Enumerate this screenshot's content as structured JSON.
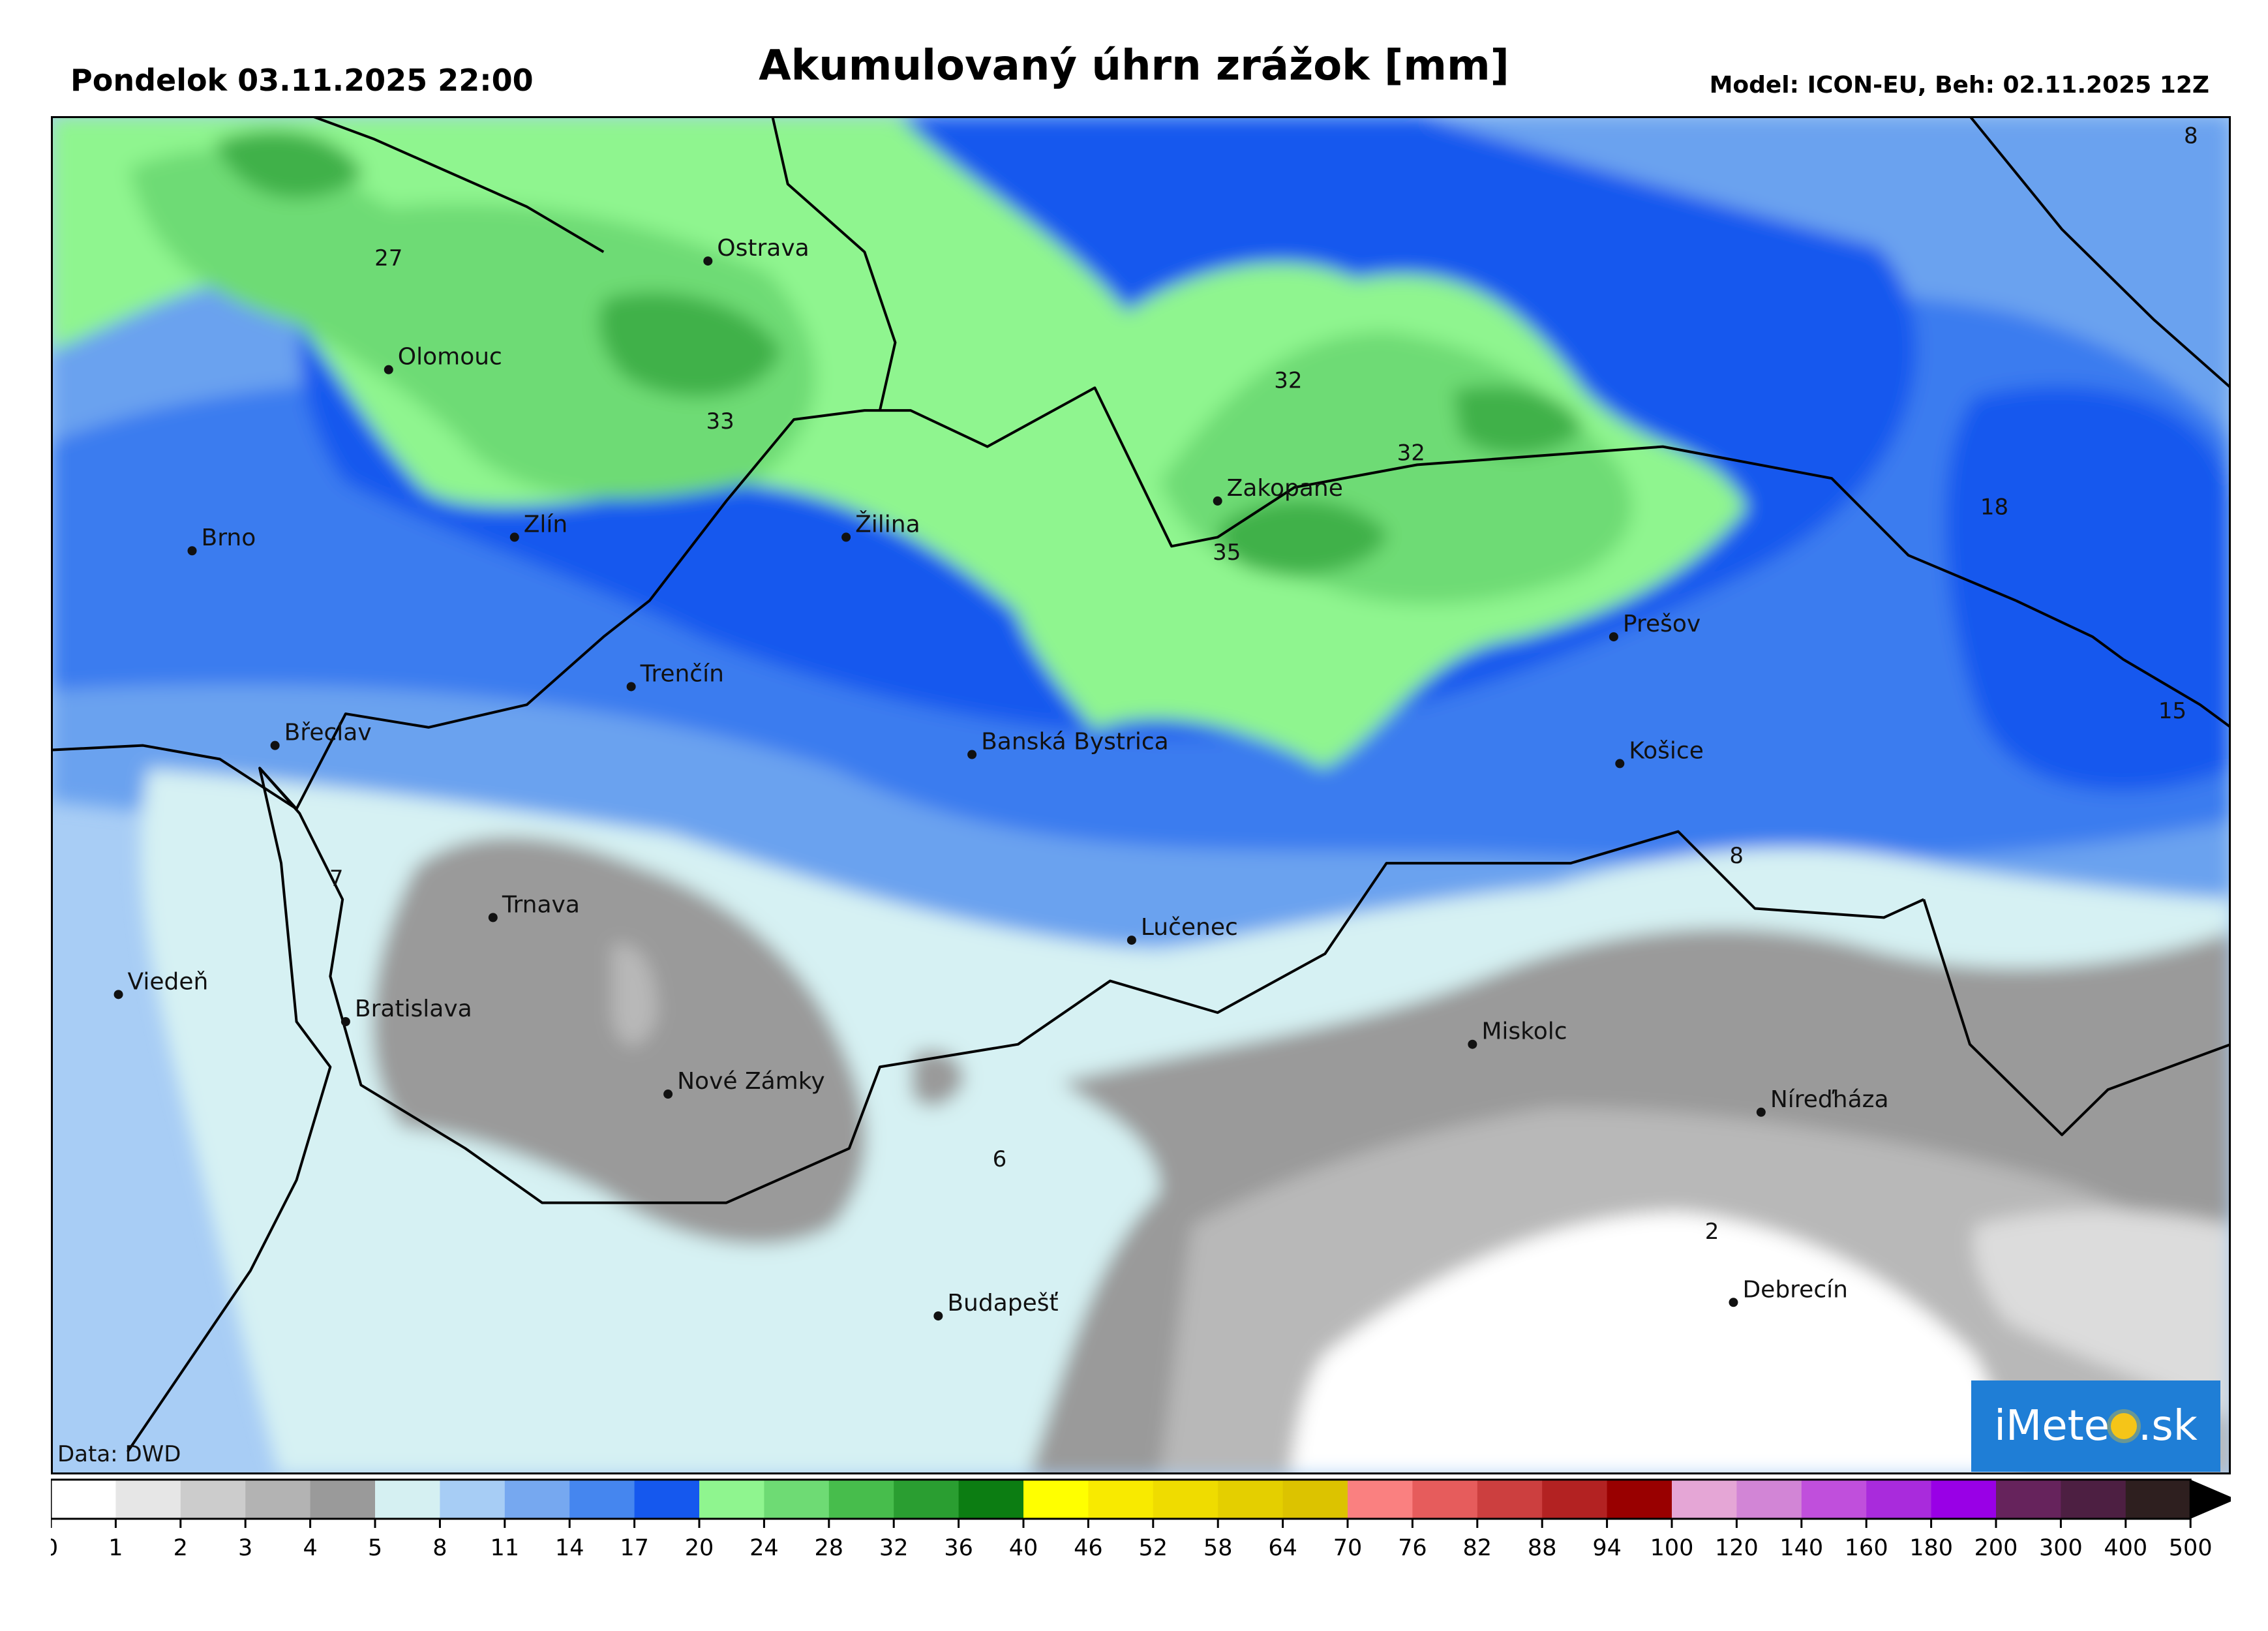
{
  "header": {
    "left": "Pondelok 03.11.2025 22:00",
    "title": "Akumulovaný úhrn zrážok [mm]",
    "right": "Model: ICON-EU, Beh: 02.11.2025 12Z"
  },
  "credit": "Data: DWD",
  "logo": {
    "before": "iMete",
    "after": ".sk",
    "icon": "sun-icon"
  },
  "colors": {
    "border": "#000000",
    "region_line": "#555555",
    "white": "#ffffff",
    "grey_light": "#dcdcdc",
    "grey_mid": "#b8b8b8",
    "grey_dark": "#9a9a9a",
    "lightblue": "#d6f1f3",
    "blue1": "#a8cdf5",
    "blue2": "#6aa2ef",
    "blue3": "#3b7bef",
    "blue4": "#1558ee",
    "green1": "#8ff58f",
    "green2": "#6edb74",
    "green3": "#3fb14a"
  },
  "cities": [
    {
      "name": "Ostrava",
      "lon": 18.29,
      "lat": 49.83
    },
    {
      "name": "Olomouc",
      "lon": 17.25,
      "lat": 49.59
    },
    {
      "name": "Brno",
      "lon": 16.61,
      "lat": 49.19
    },
    {
      "name": "Zlín",
      "lon": 17.66,
      "lat": 49.22
    },
    {
      "name": "Žilina",
      "lon": 18.74,
      "lat": 49.22
    },
    {
      "name": "Zakopane",
      "lon": 19.95,
      "lat": 49.3
    },
    {
      "name": "Prešov",
      "lon": 21.24,
      "lat": 49.0
    },
    {
      "name": "Trenčín",
      "lon": 18.04,
      "lat": 48.89
    },
    {
      "name": "Břeclav",
      "lon": 16.88,
      "lat": 48.76
    },
    {
      "name": "Banská Bystrica",
      "lon": 19.15,
      "lat": 48.74
    },
    {
      "name": "Košice",
      "lon": 21.26,
      "lat": 48.72
    },
    {
      "name": "Trnava",
      "lon": 17.59,
      "lat": 48.38
    },
    {
      "name": "Lučenec",
      "lon": 19.67,
      "lat": 48.33
    },
    {
      "name": "Viedeň",
      "lon": 16.37,
      "lat": 48.21
    },
    {
      "name": "Bratislava",
      "lon": 17.11,
      "lat": 48.15
    },
    {
      "name": "Miskolc",
      "lon": 20.78,
      "lat": 48.1
    },
    {
      "name": "Nové Zámky",
      "lon": 18.16,
      "lat": 47.99
    },
    {
      "name": "Níreďháza",
      "lon": 21.72,
      "lat": 47.95
    },
    {
      "name": "Debrecín",
      "lon": 21.63,
      "lat": 47.53
    },
    {
      "name": "Budapešť",
      "lon": 19.04,
      "lat": 47.5
    }
  ],
  "values": [
    {
      "v": "27",
      "lon": 17.25,
      "lat": 49.82
    },
    {
      "v": "33",
      "lon": 18.33,
      "lat": 49.46
    },
    {
      "v": "32",
      "lon": 20.18,
      "lat": 49.55
    },
    {
      "v": "32",
      "lon": 20.58,
      "lat": 49.39
    },
    {
      "v": "35",
      "lon": 19.98,
      "lat": 49.17
    },
    {
      "v": "18",
      "lon": 22.48,
      "lat": 49.27
    },
    {
      "v": "15",
      "lon": 23.06,
      "lat": 48.82
    },
    {
      "v": "7",
      "lon": 17.08,
      "lat": 48.45
    },
    {
      "v": "6",
      "lon": 19.24,
      "lat": 47.83
    },
    {
      "v": "2",
      "lon": 21.56,
      "lat": 47.67
    },
    {
      "v": "8",
      "lon": 21.64,
      "lat": 48.5
    },
    {
      "v": "8",
      "lon": 23.12,
      "lat": 50.09
    }
  ],
  "legend": {
    "ticks": [
      "0",
      "1",
      "2",
      "3",
      "4",
      "5",
      "8",
      "11",
      "14",
      "17",
      "20",
      "24",
      "28",
      "32",
      "36",
      "40",
      "46",
      "52",
      "58",
      "64",
      "70",
      "76",
      "82",
      "88",
      "94",
      "100",
      "120",
      "140",
      "160",
      "180",
      "200",
      "300",
      "400",
      "500"
    ],
    "colors": [
      "#ffffff",
      "#e6e6e6",
      "#cccccc",
      "#b3b3b3",
      "#9a9a9a",
      "#d5f0f2",
      "#a7cdf5",
      "#76a8f0",
      "#4586ef",
      "#1558ee",
      "#8ff58f",
      "#6edb74",
      "#47bd4c",
      "#2a9e31",
      "#0c7d12",
      "#ffff00",
      "#f8ea00",
      "#efdc00",
      "#e4cf00",
      "#dcc300",
      "#fa8080",
      "#e65c5c",
      "#cc3f3f",
      "#b32222",
      "#990000",
      "#e5a6d6",
      "#d285d6",
      "#c04fdc",
      "#a92bdc",
      "#9900e6",
      "#66235c",
      "#4d1f42",
      "#2e1f1f"
    ]
  }
}
